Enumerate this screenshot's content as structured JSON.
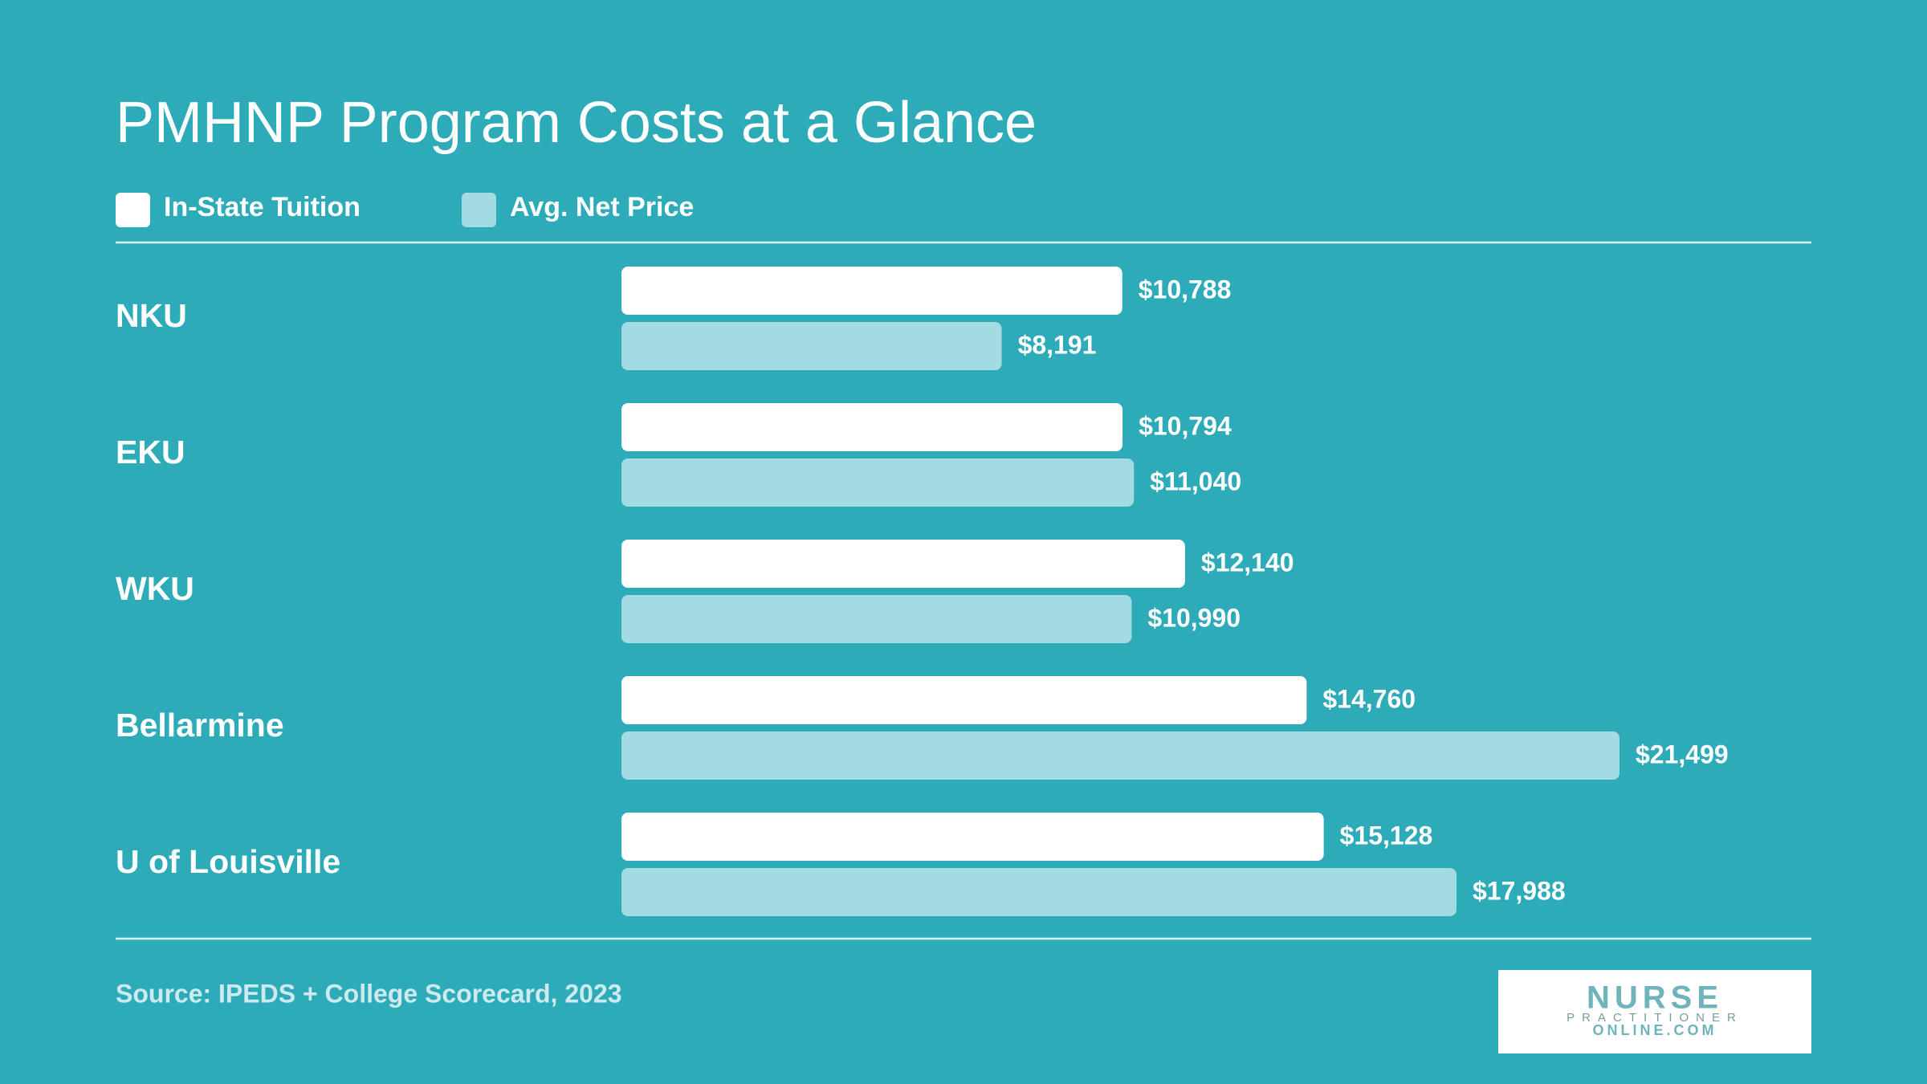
{
  "chart_data": {
    "type": "bar",
    "orientation": "horizontal",
    "title": "PMHNP Program Costs at a Glance",
    "categories": [
      "NKU",
      "EKU",
      "WKU",
      "Bellarmine",
      "U of Louisville"
    ],
    "series": [
      {
        "name": "In-State Tuition",
        "color": "#ffffff",
        "values": [
          10788,
          10794,
          12140,
          14760,
          15128
        ],
        "value_labels": [
          "$10,788",
          "$10,794",
          "$12,140",
          "$14,760",
          "$15,128"
        ]
      },
      {
        "name": "Avg. Net Price",
        "color": "#a3dbe3",
        "values": [
          8191,
          11040,
          10990,
          21499,
          17988
        ],
        "value_labels": [
          "$8,191",
          "$11,040",
          "$10,990",
          "$21,499",
          "$17,988"
        ]
      }
    ],
    "source": "Source: IPEDS + College Scorecard, 2023"
  },
  "logo": {
    "lines": [
      "NURSE",
      "PRACTITIONER",
      "ONLINE.COM"
    ]
  }
}
